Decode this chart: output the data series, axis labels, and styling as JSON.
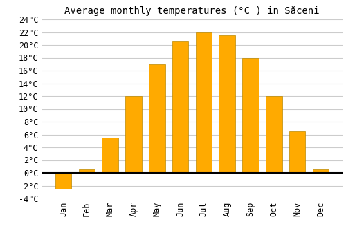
{
  "title": "Average monthly temperatures (°C ) in Săceni",
  "months": [
    "Jan",
    "Feb",
    "Mar",
    "Apr",
    "May",
    "Jun",
    "Jul",
    "Aug",
    "Sep",
    "Oct",
    "Nov",
    "Dec"
  ],
  "values": [
    -2.5,
    0.5,
    5.5,
    12.0,
    17.0,
    20.5,
    22.0,
    21.5,
    18.0,
    12.0,
    6.5,
    0.5
  ],
  "bar_color": "#FFAA00",
  "bar_edge_color": "#BB8800",
  "background_color": "#ffffff",
  "grid_color": "#cccccc",
  "ylim": [
    -4,
    24
  ],
  "yticks": [
    -4,
    -2,
    0,
    2,
    4,
    6,
    8,
    10,
    12,
    14,
    16,
    18,
    20,
    22,
    24
  ],
  "title_fontsize": 10,
  "tick_fontsize": 8.5,
  "font_family": "monospace"
}
